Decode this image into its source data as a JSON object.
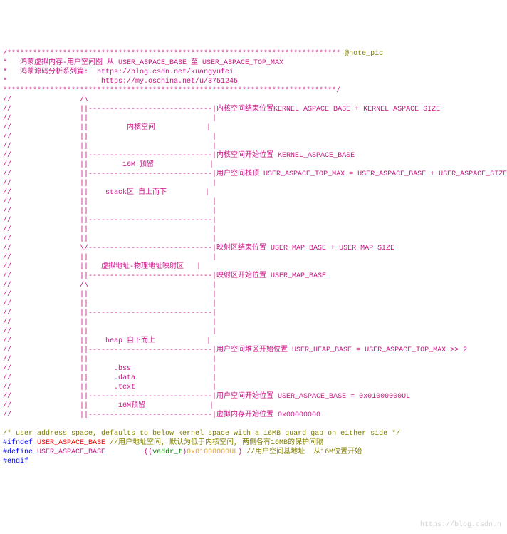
{
  "header": {
    "stars_leading": "/******************************************************************************",
    "note_tag": " @note_pic",
    "line1": "*   鸿蒙虚拟内存-用户空间图 从 USER_ASPACE_BASE 至 USER_ASPACE_TOP_MAX",
    "line2": "*   鸿蒙源码分析系列篇:  https://blog.csdn.net/kuangyufei",
    "line3": "*                      https://my.oschina.net/u/3751245",
    "stars_closing": "******************************************************************************/"
  },
  "diagram": {
    "l01": "//                /\\",
    "l02": "//                ||-----------------------------|内核空间结束位置KERNEL_ASPACE_BASE + KERNEL_ASPACE_SIZE",
    "l03": "//                ||                             |",
    "l04": "//                ||         内核空间            |",
    "l05": "//                ||                             |",
    "l06": "//                ||                             |",
    "l07": "//                ||-----------------------------|内核空间开始位置 KERNEL_ASPACE_BASE",
    "l08": "//                ||        16M 预留             |",
    "l09": "//                ||-----------------------------|用户空间栈顶 USER_ASPACE_TOP_MAX = USER_ASPACE_BASE + USER_ASPACE_SIZE",
    "l10": "//                ||                             |",
    "l11": "//                ||    stack区 自上而下         |",
    "l12": "//                ||                             |",
    "l13": "//                ||                             |",
    "l14": "//                ||-----------------------------|",
    "l15": "//                ||                             |",
    "l16": "//                ||                             |",
    "l17": "//                \\/-----------------------------|映射区结束位置 USER_MAP_BASE + USER_MAP_SIZE",
    "l18": "//                ||                             |",
    "l19": "//                ||   虚拟地址-物理地址映射区   |",
    "l20": "//                ||-----------------------------|映射区开始位置 USER_MAP_BASE",
    "l21": "//                /\\                             |",
    "l22": "//                ||                             |",
    "l23": "//                ||                             |",
    "l24": "//                ||-----------------------------|",
    "l25": "//                ||                             |",
    "l26": "//                ||                             |",
    "l27": "//                ||    heap 自下而上            |",
    "l28": "//                ||-----------------------------|用户空间堆区开始位置 USER_HEAP_BASE = USER_ASPACE_TOP_MAX >> 2",
    "l29": "//                ||                             |",
    "l30": "//                ||      .bss                   |",
    "l31": "//                ||      .data                  |",
    "l32": "//                ||      .text                  |",
    "l33": "//                ||-----------------------------|用户空间开始位置 USER_ASPACE_BASE = 0x01000000UL",
    "l34": "//                ||       16M预留               |",
    "l35": "//                ||-----------------------------|虚拟内存开始位置 0x00000000"
  },
  "footer": {
    "comment": "/* user address space, defaults to below kernel space with a 16MB guard gap on either side */",
    "ifndef": "#ifndef",
    "macro_user_aspace_base": "USER_ASPACE_BASE",
    "ifndef_comment": " //用户地址空间, 默认为低于内核空间, 两侧各有16MB的保护间隔",
    "define": "#define",
    "define_val_open": "((",
    "cast_type": "vaddr_t",
    "cast_close": ")",
    "hex_value": "0x01000000UL",
    "define_close": ")",
    "define_comment": " //用户空间基地址  从16M位置开始",
    "endif": "#endif"
  },
  "watermark": "https://blog.csdn.n",
  "colors": {
    "main": "#c71585",
    "olive": "#808000",
    "blue": "#0000ff",
    "green": "#008000",
    "gray": "#808080",
    "yellow": "#DAA520",
    "red": "#ff0000"
  }
}
